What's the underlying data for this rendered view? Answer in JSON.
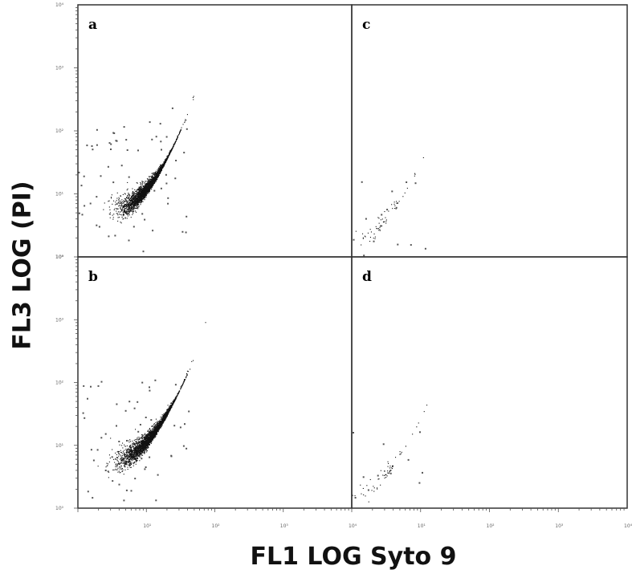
{
  "figure": {
    "ylabel": "FL3 LOG (PI)",
    "xlabel": "FL1 LOG Syto 9"
  },
  "chart_data": {
    "type": "scatter",
    "xlabel": "FL1 LOG Syto 9",
    "ylabel": "FL3 LOG (PI)",
    "x_scale": "log",
    "y_scale": "log",
    "xlim": [
      1,
      10000
    ],
    "ylim": [
      1,
      10000
    ],
    "x_ticks": [
      "10⁰",
      "10¹",
      "10²",
      "10³",
      "10⁴"
    ],
    "y_ticks": [
      "10⁰",
      "10¹",
      "10²",
      "10³",
      "10⁴"
    ],
    "grid": false,
    "legend": "none",
    "panels": [
      {
        "label": "a",
        "population": {
          "center_x": 10,
          "center_y": 12,
          "spread": 0.25,
          "approx_events": 2600
        },
        "scatter_events": 60
      },
      {
        "label": "b",
        "population": {
          "center_x": 11,
          "center_y": 13,
          "spread": 0.27,
          "approx_events": 2700
        },
        "scatter_events": 60
      },
      {
        "label": "c",
        "population": {
          "center_x": 3,
          "center_y": 4,
          "spread": 0.3,
          "approx_events": 60
        },
        "scatter_events": 15
      },
      {
        "label": "d",
        "population": {
          "center_x": 3,
          "center_y": 3.5,
          "spread": 0.3,
          "approx_events": 60
        },
        "scatter_events": 12
      }
    ]
  }
}
